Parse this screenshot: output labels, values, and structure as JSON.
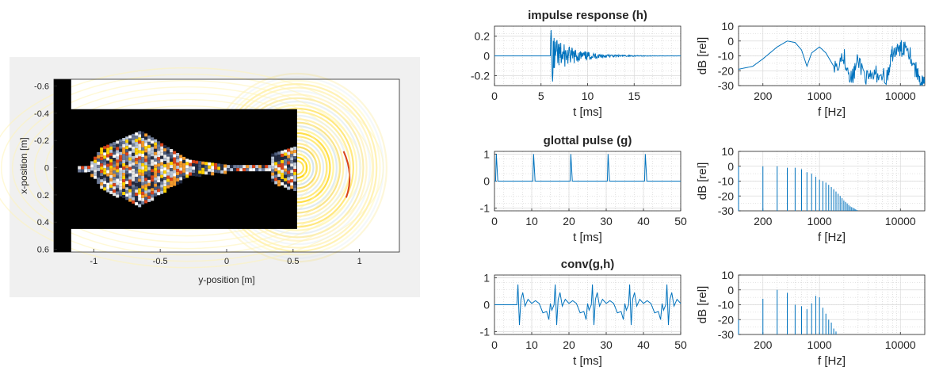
{
  "colors": {
    "line": "#0072BD",
    "axis": "#262626",
    "grid": "#d9d9d9",
    "panel_bg": "#f0f0f0",
    "mask": "#000000"
  },
  "left_panel": {
    "xlabel": "y-position [m]",
    "ylabel": "x-position [m]",
    "xticks": [
      "-1",
      "-0.5",
      "0",
      "0.5",
      "1"
    ],
    "yticks": [
      "-0.6",
      "-0.4",
      "-0.2",
      "0",
      "0.2",
      "0.4",
      "0.6"
    ]
  },
  "chart_data": [
    {
      "type": "heatmap",
      "id": "field",
      "xlabel": "y-position [m]",
      "ylabel": "x-position [m]",
      "xlim": [
        -1.3,
        1.3
      ],
      "ylim": [
        -0.65,
        0.62
      ],
      "grid": false,
      "wall_x_end": 0.53,
      "wall_y_inner": [
        -0.43,
        0.45
      ]
    },
    {
      "type": "line",
      "id": "ir_time",
      "title": "impulse response (h)",
      "xlabel": "t [ms]",
      "ylabel": "",
      "xlim": [
        0,
        20
      ],
      "ylim": [
        -0.3,
        0.3
      ],
      "xticks": [
        "0",
        "5",
        "10",
        "15"
      ],
      "yticks": [
        "0.2",
        "0",
        "-0.2"
      ],
      "x": [
        0,
        6.0,
        6.2,
        6.4,
        6.6,
        6.8,
        7.2,
        7.8,
        8.6,
        9.2,
        10.0,
        11.0,
        12.0,
        14.0,
        16.0,
        18.0,
        20.0
      ],
      "y": [
        0,
        0.0,
        0.26,
        -0.18,
        0.16,
        -0.1,
        0.11,
        -0.08,
        0.06,
        -0.05,
        0.04,
        -0.03,
        0.02,
        0.01,
        0.005,
        0.002,
        0
      ]
    },
    {
      "type": "line",
      "id": "ir_spec",
      "title": "",
      "xlabel": "f [Hz]",
      "ylabel": "dB [rel]",
      "xlog": true,
      "xlim": [
        100,
        20000
      ],
      "ylim": [
        -30,
        10
      ],
      "xticks": [
        "200",
        "1000",
        "10000"
      ],
      "yticks": [
        "10",
        "0",
        "-10",
        "-20",
        "-30"
      ],
      "x": [
        100,
        150,
        200,
        300,
        400,
        500,
        600,
        700,
        800,
        1000,
        1200,
        1500,
        2000,
        2500,
        3000,
        4000,
        5000,
        7000,
        8000,
        10000,
        12000,
        15000,
        18000,
        20000
      ],
      "y": [
        -19,
        -17,
        -12,
        -4,
        0,
        -1,
        -6,
        -17,
        -8,
        -4,
        -8,
        -17,
        -10,
        -26,
        -13,
        -27,
        -22,
        -24,
        -8,
        -6,
        -2,
        -18,
        -27,
        -30
      ]
    },
    {
      "type": "line",
      "id": "gp_time",
      "title": "glottal pulse (g)",
      "xlabel": "t [ms]",
      "ylabel": "",
      "xlim": [
        0,
        50
      ],
      "ylim": [
        -1.1,
        1.1
      ],
      "xticks": [
        "0",
        "10",
        "20",
        "30",
        "40",
        "50"
      ],
      "yticks": [
        "1",
        "0",
        "-1"
      ],
      "pulse_times": [
        0.5,
        10.5,
        20.5,
        30.5,
        40.5
      ],
      "pulse_width": 1.0,
      "pulse_height": 1.0
    },
    {
      "type": "line",
      "id": "gp_spec",
      "title": "",
      "xlabel": "f [Hz]",
      "ylabel": "dB [rel]",
      "xlog": true,
      "xlim": [
        100,
        20000
      ],
      "ylim": [
        -30,
        10
      ],
      "xticks": [
        "200",
        "1000",
        "10000"
      ],
      "yticks": [
        "10",
        "0",
        "-10",
        "-20",
        "-30"
      ],
      "x": [
        100,
        200,
        300,
        400,
        500,
        600,
        700,
        800,
        900,
        1000,
        1200,
        1400,
        1600,
        1800,
        2000,
        2200,
        2400,
        2600,
        2800,
        3000
      ],
      "y": [
        0,
        0,
        0,
        -1,
        -1,
        -2,
        -4,
        -5,
        -7,
        -9,
        -11,
        -14,
        -17,
        -20,
        -23,
        -25,
        -27,
        -28,
        -29,
        -30
      ]
    },
    {
      "type": "line",
      "id": "conv_time",
      "title": "conv(g,h)",
      "xlabel": "t [ms]",
      "ylabel": "",
      "xlim": [
        0,
        50
      ],
      "ylim": [
        -1.1,
        1.1
      ],
      "xticks": [
        "0",
        "10",
        "20",
        "30",
        "40",
        "50"
      ],
      "yticks": [
        "1",
        "0",
        "-1"
      ],
      "onset": 6,
      "period": 10,
      "cycle_dt": [
        0,
        0.3,
        0.7,
        1.1,
        1.6,
        2.2,
        3.0,
        4.0,
        5.0,
        6.0,
        7.0,
        8.0,
        8.6,
        9.0,
        9.4,
        10
      ],
      "cycle_y": [
        0,
        0.75,
        -0.75,
        0.2,
        0.45,
        -0.05,
        0.2,
        0.05,
        0.15,
        0.05,
        -0.3,
        -0.25,
        -0.55,
        0.05,
        -0.2,
        0
      ]
    },
    {
      "type": "line",
      "id": "conv_spec",
      "title": "",
      "xlabel": "f [Hz]",
      "ylabel": "dB [rel]",
      "xlog": true,
      "xlim": [
        100,
        20000
      ],
      "ylim": [
        -30,
        10
      ],
      "xticks": [
        "200",
        "1000",
        "10000"
      ],
      "yticks": [
        "10",
        "0",
        "-10",
        "-20",
        "-30"
      ],
      "x": [
        100,
        200,
        300,
        400,
        500,
        600,
        700,
        800,
        900,
        1000,
        1100,
        1200,
        1300,
        1400,
        1500,
        1600
      ],
      "y": [
        -20,
        -6,
        0,
        -2,
        -10,
        -11,
        -13,
        -9,
        -4,
        -5,
        -12,
        -16,
        -20,
        -22,
        -26,
        -28
      ]
    }
  ]
}
